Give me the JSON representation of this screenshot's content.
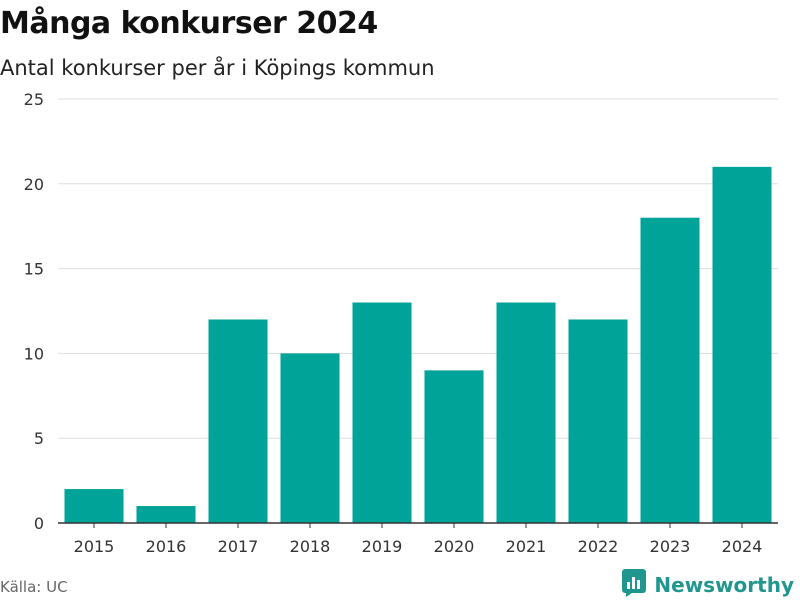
{
  "header": {
    "title": "Många konkurser 2024",
    "subtitle": "Antal konkurser per år i Köpings kommun"
  },
  "footer": {
    "source": "Källa: UC",
    "brand": "Newsworthy",
    "brand_icon": "bar-chart-logo-icon"
  },
  "colors": {
    "bar": "#00a398",
    "grid": "#dddddd",
    "axis": "#333333",
    "tick_text": "#333333",
    "brand": "#21968f"
  },
  "chart_data": {
    "type": "bar",
    "title": "Många konkurser 2024",
    "subtitle": "Antal konkurser per år i Köpings kommun",
    "xlabel": "",
    "ylabel": "",
    "categories": [
      "2015",
      "2016",
      "2017",
      "2018",
      "2019",
      "2020",
      "2021",
      "2022",
      "2023",
      "2024"
    ],
    "values": [
      2,
      1,
      12,
      10,
      13,
      9,
      13,
      12,
      18,
      21
    ],
    "ylim": [
      0,
      25
    ],
    "yticks": [
      0,
      5,
      10,
      15,
      20,
      25
    ],
    "grid": true,
    "legend": "none"
  }
}
